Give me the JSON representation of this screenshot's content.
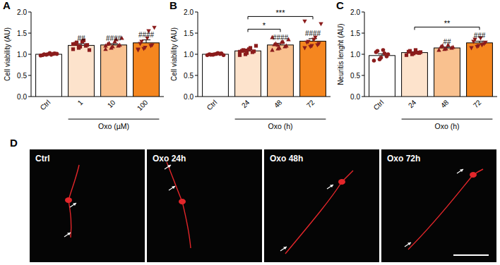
{
  "chart_data": [
    {
      "type": "bar",
      "panel": "A",
      "y_label": "Cell viability (AU)",
      "categories": [
        "Ctrl",
        "1",
        "10",
        "100"
      ],
      "values": [
        1.0,
        1.21,
        1.22,
        1.27
      ],
      "errors": [
        0.01,
        0.04,
        0.03,
        0.07
      ],
      "points": [
        [
          0.97,
          0.99,
          1.0,
          1.01,
          1.02,
          0.98,
          1.0,
          1.03,
          0.99,
          1.01
        ],
        [
          1.12,
          1.15,
          1.18,
          1.2,
          1.22,
          1.25,
          1.28,
          1.3,
          1.33,
          1.1,
          1.24,
          1.19
        ],
        [
          1.12,
          1.15,
          1.18,
          1.2,
          1.22,
          1.24,
          1.26,
          1.3,
          1.35,
          1.38,
          1.2
        ],
        [
          1.1,
          1.13,
          1.16,
          1.2,
          1.22,
          1.25,
          1.3,
          1.38,
          1.55,
          1.63,
          1.12
        ]
      ],
      "colors": [
        "#ffffff",
        "#fde3cc",
        "#f9c18f",
        "#f5861f"
      ],
      "ylim": [
        0,
        2
      ],
      "yticks": [
        {
          "value": 0,
          "label": "0.0"
        },
        {
          "value": 0.5,
          "label": "0.5"
        },
        {
          "value": 1,
          "label": "1.0"
        },
        {
          "value": 1.5,
          "label": "1.5"
        },
        {
          "value": 2,
          "label": "2.0"
        }
      ],
      "group_label": {
        "text": "Oxo (µM)",
        "from": "1",
        "to": "100"
      },
      "annotations": [
        {
          "text": "##",
          "category": "1"
        },
        {
          "text": "####",
          "category": "10"
        },
        {
          "text": "####",
          "category": "100"
        }
      ],
      "brackets": []
    },
    {
      "type": "bar",
      "panel": "B",
      "y_label": "Cell viability (AU)",
      "categories": [
        "Ctrl",
        "24",
        "48",
        "72"
      ],
      "values": [
        1.0,
        1.08,
        1.22,
        1.31
      ],
      "errors": [
        0.01,
        0.03,
        0.04,
        0.06
      ],
      "points": [
        [
          0.98,
          0.99,
          1.0,
          1.01,
          1.02,
          1.0,
          0.99,
          1.01,
          1.03,
          0.98
        ],
        [
          0.98,
          1.0,
          1.03,
          1.05,
          1.07,
          1.08,
          1.1,
          1.12,
          1.15,
          1.2,
          1.06,
          1.09
        ],
        [
          1.1,
          1.13,
          1.15,
          1.18,
          1.2,
          1.23,
          1.25,
          1.28,
          1.3,
          1.35,
          1.4,
          1.22
        ],
        [
          1.15,
          1.18,
          1.2,
          1.22,
          1.25,
          1.28,
          1.3,
          1.35,
          1.4,
          1.72,
          1.78
        ]
      ],
      "colors": [
        "#ffffff",
        "#fde3cc",
        "#f9c18f",
        "#f5861f"
      ],
      "ylim": [
        0,
        2
      ],
      "yticks": [
        {
          "value": 0,
          "label": "0.0"
        },
        {
          "value": 0.5,
          "label": "0.5"
        },
        {
          "value": 1,
          "label": "1.0"
        },
        {
          "value": 1.5,
          "label": "1.5"
        },
        {
          "value": 2,
          "label": "2.0"
        }
      ],
      "group_label": {
        "text": "Oxo (h)",
        "from": "24",
        "to": "72"
      },
      "annotations": [
        {
          "text": "####",
          "category": "48"
        },
        {
          "text": "####",
          "category": "72"
        }
      ],
      "brackets": [
        {
          "text": "*",
          "from": "24",
          "to": "48"
        },
        {
          "text": "***",
          "from": "24",
          "to": "72"
        }
      ]
    },
    {
      "type": "bar",
      "panel": "C",
      "y_label": "Neuritis lenght (AU)",
      "categories": [
        "Ctrl",
        "24",
        "48",
        "72"
      ],
      "values": [
        0.97,
        1.04,
        1.15,
        1.27
      ],
      "errors": [
        0.04,
        0.02,
        0.02,
        0.04
      ],
      "points": [
        [
          0.85,
          0.88,
          0.92,
          0.95,
          1.0,
          1.05,
          1.08,
          1.1,
          1.02
        ],
        [
          0.98,
          1.0,
          1.02,
          1.03,
          1.05,
          1.06,
          1.08,
          1.1,
          1.04
        ],
        [
          1.1,
          1.12,
          1.13,
          1.15,
          1.17,
          1.18,
          1.2,
          1.22
        ],
        [
          1.15,
          1.18,
          1.2,
          1.25,
          1.28,
          1.3,
          1.35,
          1.38,
          1.22
        ]
      ],
      "colors": [
        "#ffffff",
        "#fde3cc",
        "#f9c18f",
        "#f5861f"
      ],
      "ylim": [
        0,
        2
      ],
      "yticks": [
        {
          "value": 0,
          "label": "0.0"
        },
        {
          "value": 0.5,
          "label": "0.5"
        },
        {
          "value": 1,
          "label": "1.0"
        },
        {
          "value": 1.5,
          "label": "1.5"
        },
        {
          "value": 2,
          "label": "2.0"
        }
      ],
      "group_label": {
        "text": "Oxo (h)",
        "from": "24",
        "to": "72"
      },
      "annotations": [
        {
          "text": "##",
          "category": "48"
        },
        {
          "text": "###",
          "category": "72"
        }
      ],
      "brackets": [
        {
          "text": "**",
          "from": "24",
          "to": "72"
        }
      ]
    }
  ],
  "image_panel": {
    "panel": "D",
    "images": [
      "Ctrl",
      "Oxo 24h",
      "Oxo 48h",
      "Oxo 72h"
    ]
  }
}
